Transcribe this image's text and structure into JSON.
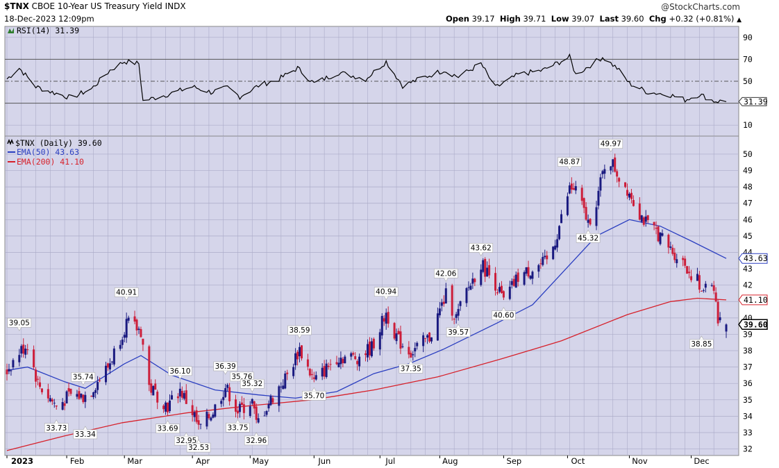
{
  "header": {
    "symbol": "$TNX",
    "description": "CBOE 10-Year US Treasury Yield",
    "exchange": "INDX",
    "datetime": "18-Dec-2023 12:09pm",
    "brand": "@StockCharts.com",
    "quote": {
      "open_label": "Open",
      "open": "39.17",
      "high_label": "High",
      "high": "39.71",
      "low_label": "Low",
      "low": "39.07",
      "last_label": "Last",
      "last": "39.60",
      "chg_label": "Chg",
      "chg": "+0.32 (+0.81%)",
      "arrow": "▲"
    }
  },
  "colors": {
    "plot_bg": "#d5d5ea",
    "up_candle": "#1a1a80",
    "down_candle": "#cc1e3a",
    "ema50": "#2a3ec0",
    "ema200": "#d6202a",
    "rsi_line": "#000000"
  },
  "chart_data": [
    {
      "type": "line",
      "title": "RSI(14) 31.39",
      "series": [
        {
          "name": "RSI(14)",
          "last": 31.39
        }
      ],
      "y_ticks": [
        10,
        30,
        50,
        70,
        90
      ],
      "ylim": [
        0,
        100
      ],
      "reference_lines": [
        30,
        50,
        70
      ],
      "last_label": "31.39",
      "profile": [
        [
          "2023-01-03",
          52
        ],
        [
          "2023-01-09",
          62
        ],
        [
          "2023-01-17",
          45
        ],
        [
          "2023-01-25",
          40
        ],
        [
          "2023-02-03",
          35
        ],
        [
          "2023-02-13",
          43
        ],
        [
          "2023-02-22",
          60
        ],
        [
          "2023-03-01",
          68
        ],
        [
          "2023-03-08",
          66
        ],
        [
          "2023-03-10",
          32
        ],
        [
          "2023-03-22",
          38
        ],
        [
          "2023-04-03",
          45
        ],
        [
          "2023-04-12",
          40
        ],
        [
          "2023-04-20",
          44
        ],
        [
          "2023-04-26",
          36
        ],
        [
          "2023-05-05",
          46
        ],
        [
          "2023-05-15",
          52
        ],
        [
          "2023-05-24",
          62
        ],
        [
          "2023-06-01",
          48
        ],
        [
          "2023-06-13",
          58
        ],
        [
          "2023-06-26",
          52
        ],
        [
          "2023-07-06",
          68
        ],
        [
          "2023-07-14",
          46
        ],
        [
          "2023-07-25",
          54
        ],
        [
          "2023-08-03",
          60
        ],
        [
          "2023-08-10",
          54
        ],
        [
          "2023-08-21",
          66
        ],
        [
          "2023-08-28",
          44
        ],
        [
          "2023-09-08",
          56
        ],
        [
          "2023-09-20",
          60
        ],
        [
          "2023-10-03",
          72
        ],
        [
          "2023-10-06",
          56
        ],
        [
          "2023-10-19",
          72
        ],
        [
          "2023-10-26",
          62
        ],
        [
          "2023-11-01",
          48
        ],
        [
          "2023-11-10",
          40
        ],
        [
          "2023-11-20",
          38
        ],
        [
          "2023-11-28",
          33
        ],
        [
          "2023-12-05",
          38
        ],
        [
          "2023-12-12",
          32
        ],
        [
          "2023-12-18",
          31.39
        ]
      ]
    },
    {
      "type": "candlestick",
      "title": "$TNX (Daily) 39.60",
      "ylim": [
        31.6,
        51.1
      ],
      "y_ticks": [
        32,
        33,
        34,
        35,
        36,
        37,
        38,
        39,
        40,
        41,
        42,
        43,
        44,
        45,
        46,
        47,
        48,
        49,
        50
      ],
      "x_ticks": [
        "2023",
        "Feb",
        "Mar",
        "Apr",
        "May",
        "Jun",
        "Jul",
        "Aug",
        "Sep",
        "Oct",
        "Nov",
        "Dec"
      ],
      "series": [
        {
          "name": "EMA(50)",
          "value": "43.63",
          "label": "EMA(50) 43.63",
          "points": [
            [
              "2023-01-03",
              36.8
            ],
            [
              "2023-01-13",
              37.0
            ],
            [
              "2023-01-31",
              36.1
            ],
            [
              "2023-02-10",
              35.7
            ],
            [
              "2023-03-01",
              37.2
            ],
            [
              "2023-03-09",
              37.7
            ],
            [
              "2023-03-24",
              36.5
            ],
            [
              "2023-04-14",
              35.6
            ],
            [
              "2023-05-05",
              35.3
            ],
            [
              "2023-05-23",
              35.1
            ],
            [
              "2023-06-12",
              35.5
            ],
            [
              "2023-06-30",
              36.6
            ],
            [
              "2023-07-17",
              37.2
            ],
            [
              "2023-08-03",
              38.1
            ],
            [
              "2023-08-29",
              39.7
            ],
            [
              "2023-09-15",
              40.8
            ],
            [
              "2023-10-02",
              43.1
            ],
            [
              "2023-10-16",
              45.0
            ],
            [
              "2023-11-01",
              46.0
            ],
            [
              "2023-11-16",
              45.6
            ],
            [
              "2023-12-01",
              44.7
            ],
            [
              "2023-12-18",
              43.63
            ]
          ]
        },
        {
          "name": "EMA(200)",
          "value": "41.10",
          "label": "EMA(200) 41.10",
          "points": [
            [
              "2023-01-03",
              31.9
            ],
            [
              "2023-01-31",
              32.8
            ],
            [
              "2023-02-28",
              33.6
            ],
            [
              "2023-03-31",
              34.2
            ],
            [
              "2023-04-28",
              34.6
            ],
            [
              "2023-05-31",
              35.0
            ],
            [
              "2023-06-30",
              35.6
            ],
            [
              "2023-07-31",
              36.4
            ],
            [
              "2023-08-31",
              37.5
            ],
            [
              "2023-09-29",
              38.6
            ],
            [
              "2023-10-31",
              40.2
            ],
            [
              "2023-11-21",
              41.0
            ],
            [
              "2023-12-04",
              41.2
            ],
            [
              "2023-12-18",
              41.1
            ]
          ]
        }
      ],
      "annotations": [
        {
          "date": "2023-01-09",
          "value": 39.05,
          "text": "39.05",
          "pos": "above"
        },
        {
          "date": "2023-01-27",
          "value": 33.73,
          "text": "33.73",
          "pos": "below"
        },
        {
          "date": "2023-02-09",
          "value": 35.74,
          "text": "35.74",
          "pos": "above"
        },
        {
          "date": "2023-02-10",
          "value": 33.34,
          "text": "33.34",
          "pos": "below"
        },
        {
          "date": "2023-03-02",
          "value": 40.91,
          "text": "40.91",
          "pos": "above"
        },
        {
          "date": "2023-03-22",
          "value": 33.69,
          "text": "33.69",
          "pos": "below"
        },
        {
          "date": "2023-03-28",
          "value": 36.1,
          "text": "36.10",
          "pos": "above"
        },
        {
          "date": "2023-03-31",
          "value": 32.95,
          "text": "32.95",
          "pos": "below"
        },
        {
          "date": "2023-04-06",
          "value": 32.53,
          "text": "32.53",
          "pos": "below"
        },
        {
          "date": "2023-04-19",
          "value": 36.39,
          "text": "36.39",
          "pos": "above"
        },
        {
          "date": "2023-04-25",
          "value": 33.75,
          "text": "33.75",
          "pos": "below"
        },
        {
          "date": "2023-04-27",
          "value": 35.76,
          "text": "35.76",
          "pos": "above"
        },
        {
          "date": "2023-05-02",
          "value": 35.32,
          "text": "35.32",
          "pos": "above"
        },
        {
          "date": "2023-05-04",
          "value": 32.96,
          "text": "32.96",
          "pos": "below"
        },
        {
          "date": "2023-05-25",
          "value": 38.59,
          "text": "38.59",
          "pos": "above"
        },
        {
          "date": "2023-06-01",
          "value": 35.7,
          "text": "35.70",
          "pos": "below"
        },
        {
          "date": "2023-07-06",
          "value": 40.94,
          "text": "40.94",
          "pos": "above"
        },
        {
          "date": "2023-07-18",
          "value": 37.35,
          "text": "37.35",
          "pos": "below"
        },
        {
          "date": "2023-08-04",
          "value": 42.06,
          "text": "42.06",
          "pos": "above"
        },
        {
          "date": "2023-08-10",
          "value": 39.57,
          "text": "39.57",
          "pos": "below"
        },
        {
          "date": "2023-08-21",
          "value": 43.62,
          "text": "43.62",
          "pos": "above"
        },
        {
          "date": "2023-09-01",
          "value": 40.6,
          "text": "40.60",
          "pos": "below"
        },
        {
          "date": "2023-10-03",
          "value": 48.87,
          "text": "48.87",
          "pos": "above"
        },
        {
          "date": "2023-10-12",
          "value": 45.32,
          "text": "45.32",
          "pos": "below"
        },
        {
          "date": "2023-10-23",
          "value": 49.97,
          "text": "49.97",
          "pos": "above"
        },
        {
          "date": "2023-12-06",
          "value": 38.85,
          "text": "38.85",
          "pos": "below"
        }
      ],
      "profile": [
        [
          "2023-01-03",
          36.8
        ],
        [
          "2023-01-09",
          37.9
        ],
        [
          "2023-01-13",
          38.4
        ],
        [
          "2023-01-18",
          36.0
        ],
        [
          "2023-01-27",
          34.6
        ],
        [
          "2023-02-03",
          35.3
        ],
        [
          "2023-02-09",
          35.2
        ],
        [
          "2023-02-13",
          35.6
        ],
        [
          "2023-02-21",
          37.0
        ],
        [
          "2023-02-27",
          38.8
        ],
        [
          "2023-03-02",
          39.7
        ],
        [
          "2023-03-09",
          39.2
        ],
        [
          "2023-03-13",
          35.8
        ],
        [
          "2023-03-22",
          34.6
        ],
        [
          "2023-03-28",
          35.6
        ],
        [
          "2023-04-04",
          34.0
        ],
        [
          "2023-04-06",
          33.2
        ],
        [
          "2023-04-13",
          34.3
        ],
        [
          "2023-04-19",
          35.8
        ],
        [
          "2023-04-25",
          34.3
        ],
        [
          "2023-05-02",
          34.9
        ],
        [
          "2023-05-04",
          33.5
        ],
        [
          "2023-05-10",
          34.8
        ],
        [
          "2023-05-19",
          36.5
        ],
        [
          "2023-05-25",
          38.1
        ],
        [
          "2023-06-01",
          36.1
        ],
        [
          "2023-06-12",
          37.6
        ],
        [
          "2023-06-22",
          37.6
        ],
        [
          "2023-06-29",
          38.2
        ],
        [
          "2023-07-06",
          40.3
        ],
        [
          "2023-07-12",
          38.6
        ],
        [
          "2023-07-18",
          37.9
        ],
        [
          "2023-07-27",
          38.8
        ],
        [
          "2023-08-04",
          41.4
        ],
        [
          "2023-08-09",
          40.0
        ],
        [
          "2023-08-14",
          41.6
        ],
        [
          "2023-08-21",
          43.3
        ],
        [
          "2023-08-28",
          42.1
        ],
        [
          "2023-09-01",
          41.0
        ],
        [
          "2023-09-08",
          42.5
        ],
        [
          "2023-09-18",
          43.2
        ],
        [
          "2023-09-22",
          43.4
        ],
        [
          "2023-09-26",
          44.7
        ],
        [
          "2023-10-03",
          47.9
        ],
        [
          "2023-10-06",
          47.8
        ],
        [
          "2023-10-12",
          45.8
        ],
        [
          "2023-10-16",
          47.1
        ],
        [
          "2023-10-20",
          49.3
        ],
        [
          "2023-10-23",
          49.6
        ],
        [
          "2023-10-27",
          48.6
        ],
        [
          "2023-11-01",
          47.7
        ],
        [
          "2023-11-06",
          46.4
        ],
        [
          "2023-11-10",
          45.6
        ],
        [
          "2023-11-14",
          45.3
        ],
        [
          "2023-11-20",
          44.3
        ],
        [
          "2023-11-28",
          43.3
        ],
        [
          "2023-11-30",
          42.8
        ],
        [
          "2023-12-04",
          42.3
        ],
        [
          "2023-12-06",
          41.3
        ],
        [
          "2023-12-08",
          42.3
        ],
        [
          "2023-12-12",
          42.0
        ],
        [
          "2023-12-14",
          39.8
        ],
        [
          "2023-12-18",
          39.6
        ]
      ],
      "last_label": "39.60"
    }
  ]
}
